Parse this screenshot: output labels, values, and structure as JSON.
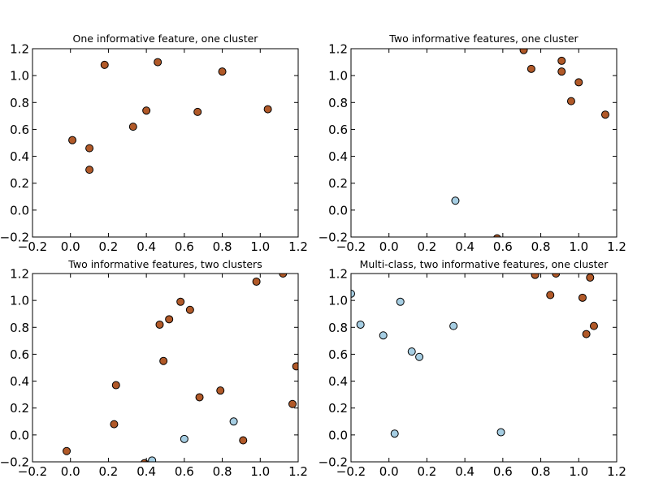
{
  "colors": {
    "class0": "#a6cee3",
    "class1": "#b15928",
    "edge": "#000000"
  },
  "chart_data": [
    {
      "type": "scatter",
      "title": "One informative feature, one cluster",
      "xlim": [
        -0.2,
        1.2
      ],
      "ylim": [
        -0.2,
        1.2
      ],
      "xticks": [
        "−0.2",
        "0.0",
        "0.2",
        "0.4",
        "0.6",
        "0.8",
        "1.0",
        "1.2"
      ],
      "yticks": [
        "−0.2",
        "0.0",
        "0.2",
        "0.4",
        "0.6",
        "0.8",
        "1.0",
        "1.2"
      ],
      "grid": false,
      "points": [
        {
          "x": 0.01,
          "y": 0.52,
          "c": 1
        },
        {
          "x": 0.1,
          "y": 0.46,
          "c": 1
        },
        {
          "x": 0.1,
          "y": 0.3,
          "c": 1
        },
        {
          "x": 0.18,
          "y": 1.08,
          "c": 1
        },
        {
          "x": 0.33,
          "y": 0.62,
          "c": 1
        },
        {
          "x": 0.4,
          "y": 0.74,
          "c": 1
        },
        {
          "x": 0.46,
          "y": 1.1,
          "c": 1
        },
        {
          "x": 0.67,
          "y": 0.73,
          "c": 1
        },
        {
          "x": 0.8,
          "y": 1.03,
          "c": 1
        },
        {
          "x": 1.04,
          "y": 0.75,
          "c": 1
        }
      ]
    },
    {
      "type": "scatter",
      "title": "Two informative features, one cluster",
      "xlim": [
        -0.2,
        1.2
      ],
      "ylim": [
        -0.2,
        1.2
      ],
      "xticks": [
        "−0.2",
        "0.0",
        "0.2",
        "0.4",
        "0.6",
        "0.8",
        "1.0",
        "1.2"
      ],
      "yticks": [
        "−0.2",
        "0.0",
        "0.2",
        "0.4",
        "0.6",
        "0.8",
        "1.0",
        "1.2"
      ],
      "grid": false,
      "points": [
        {
          "x": 0.71,
          "y": 1.19,
          "c": 1
        },
        {
          "x": 0.75,
          "y": 1.05,
          "c": 1
        },
        {
          "x": 0.91,
          "y": 1.11,
          "c": 1
        },
        {
          "x": 0.91,
          "y": 1.03,
          "c": 1
        },
        {
          "x": 1.0,
          "y": 0.95,
          "c": 1
        },
        {
          "x": 0.96,
          "y": 0.81,
          "c": 1
        },
        {
          "x": 1.14,
          "y": 0.71,
          "c": 1
        },
        {
          "x": 0.35,
          "y": 0.07,
          "c": 0
        },
        {
          "x": 0.57,
          "y": -0.21,
          "c": 1
        }
      ]
    },
    {
      "type": "scatter",
      "title": "Two informative features, two clusters",
      "xlim": [
        -0.2,
        1.2
      ],
      "ylim": [
        -0.2,
        1.2
      ],
      "xticks": [
        "−0.2",
        "0.0",
        "0.2",
        "0.4",
        "0.6",
        "0.8",
        "1.0",
        "1.2"
      ],
      "yticks": [
        "−0.2",
        "0.0",
        "0.2",
        "0.4",
        "0.6",
        "0.8",
        "1.0",
        "1.2"
      ],
      "grid": false,
      "points": [
        {
          "x": -0.02,
          "y": -0.12,
          "c": 1
        },
        {
          "x": 0.23,
          "y": 0.08,
          "c": 1
        },
        {
          "x": 0.24,
          "y": 0.37,
          "c": 1
        },
        {
          "x": 0.47,
          "y": 0.82,
          "c": 1
        },
        {
          "x": 0.49,
          "y": 0.55,
          "c": 1
        },
        {
          "x": 0.52,
          "y": 0.86,
          "c": 1
        },
        {
          "x": 0.58,
          "y": 0.99,
          "c": 1
        },
        {
          "x": 0.63,
          "y": 0.93,
          "c": 1
        },
        {
          "x": 0.68,
          "y": 0.28,
          "c": 1
        },
        {
          "x": 0.79,
          "y": 0.33,
          "c": 1
        },
        {
          "x": 0.91,
          "y": -0.04,
          "c": 1
        },
        {
          "x": 0.98,
          "y": 1.14,
          "c": 1
        },
        {
          "x": 1.12,
          "y": 1.2,
          "c": 1
        },
        {
          "x": 1.17,
          "y": 0.23,
          "c": 1
        },
        {
          "x": 1.19,
          "y": 0.51,
          "c": 1
        },
        {
          "x": 0.39,
          "y": -0.21,
          "c": 1
        },
        {
          "x": 0.43,
          "y": -0.19,
          "c": 0
        },
        {
          "x": 0.6,
          "y": -0.03,
          "c": 0
        },
        {
          "x": 0.86,
          "y": 0.1,
          "c": 0
        }
      ]
    },
    {
      "type": "scatter",
      "title": "Multi-class, two informative features, one cluster",
      "xlim": [
        -0.2,
        1.2
      ],
      "ylim": [
        -0.2,
        1.2
      ],
      "xticks": [
        "−0.2",
        "0.0",
        "0.2",
        "0.4",
        "0.6",
        "0.8",
        "1.0",
        "1.2"
      ],
      "yticks": [
        "−0.2",
        "0.0",
        "0.2",
        "0.4",
        "0.6",
        "0.8",
        "1.0",
        "1.2"
      ],
      "grid": false,
      "points": [
        {
          "x": -0.2,
          "y": 1.05,
          "c": 0
        },
        {
          "x": -0.15,
          "y": 0.82,
          "c": 0
        },
        {
          "x": -0.03,
          "y": 0.74,
          "c": 0
        },
        {
          "x": 0.06,
          "y": 0.99,
          "c": 0
        },
        {
          "x": 0.12,
          "y": 0.62,
          "c": 0
        },
        {
          "x": 0.16,
          "y": 0.58,
          "c": 0
        },
        {
          "x": 0.34,
          "y": 0.81,
          "c": 0
        },
        {
          "x": 0.03,
          "y": 0.01,
          "c": 0
        },
        {
          "x": 0.59,
          "y": 0.02,
          "c": 0
        },
        {
          "x": 0.77,
          "y": 1.19,
          "c": 1
        },
        {
          "x": 0.85,
          "y": 1.04,
          "c": 1
        },
        {
          "x": 0.88,
          "y": 1.2,
          "c": 1
        },
        {
          "x": 1.02,
          "y": 1.02,
          "c": 1
        },
        {
          "x": 1.04,
          "y": 0.75,
          "c": 1
        },
        {
          "x": 1.06,
          "y": 1.17,
          "c": 1
        },
        {
          "x": 1.08,
          "y": 0.81,
          "c": 1
        }
      ]
    }
  ]
}
